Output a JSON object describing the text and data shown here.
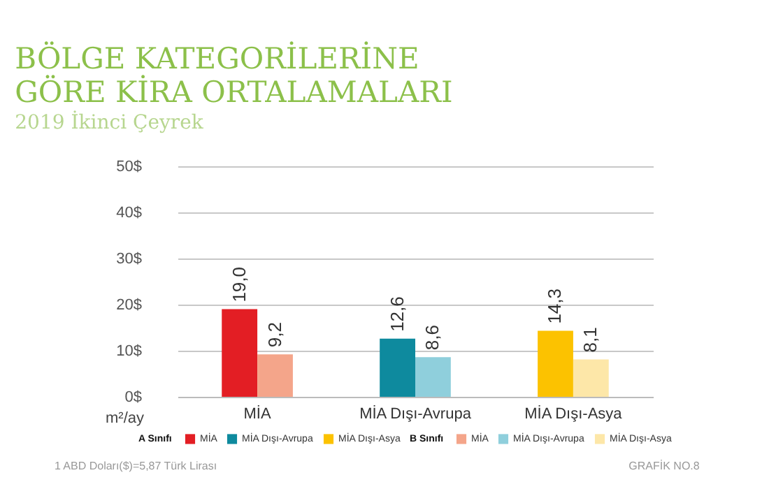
{
  "chart_data": {
    "type": "bar",
    "title": "BÖLGE KATEGORİLERİNE GÖRE KİRA ORTALAMALARI",
    "subtitle": "2019 İkinci Çeyrek",
    "ylabel": "m²/ay",
    "categories": [
      "MİA",
      "MİA Dışı-Avrupa",
      "MİA Dışı-Asya"
    ],
    "series": [
      {
        "name": "A Sınıfı",
        "colors": [
          "#e31e24",
          "#0e8a9e",
          "#fcc200"
        ],
        "values": [
          19.0,
          12.6,
          14.3
        ],
        "value_labels": [
          "19,0",
          "12,6",
          "14,3"
        ]
      },
      {
        "name": "B Sınıfı",
        "colors": [
          "#f4a58a",
          "#8fcfdc",
          "#fde7a8"
        ],
        "values": [
          9.2,
          8.6,
          8.1
        ],
        "value_labels": [
          "9,2",
          "8,6",
          "8,1"
        ]
      }
    ],
    "ylim": [
      0,
      50
    ],
    "yticks": [
      {
        "value": 0,
        "label": "0$"
      },
      {
        "value": 10,
        "label": "10$"
      },
      {
        "value": 20,
        "label": "20$"
      },
      {
        "value": 30,
        "label": "30$"
      },
      {
        "value": 40,
        "label": "40$"
      },
      {
        "value": 50,
        "label": "50$"
      }
    ],
    "grid": "y",
    "legend": "bottom",
    "annotations": [
      "1 ABD Doları($)=5,87 Türk Lirası",
      "GRAFİK NO.8"
    ]
  }
}
